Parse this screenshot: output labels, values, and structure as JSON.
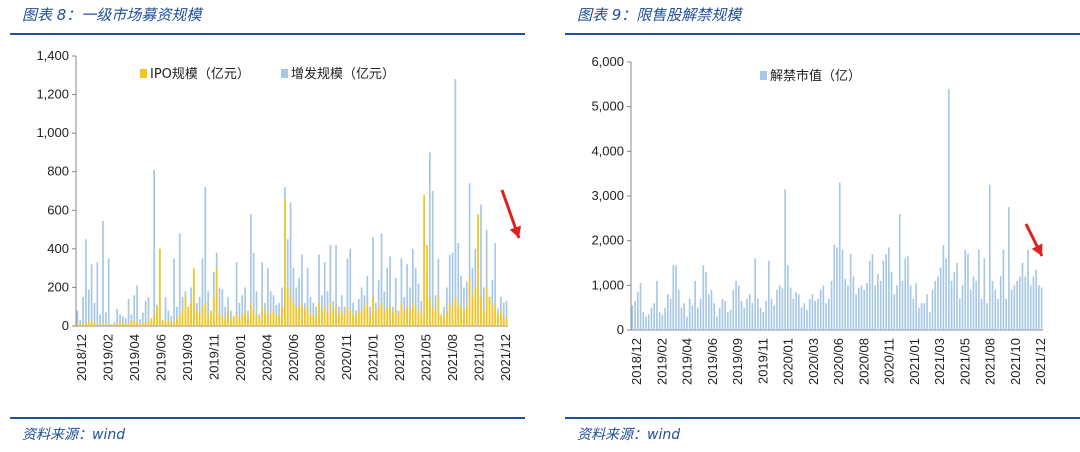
{
  "left": {
    "title": "图表 8：一级市场募资规模",
    "source": "资料来源：wind",
    "chart_data": {
      "type": "bar",
      "stacked": false,
      "ylim": [
        0,
        1400
      ],
      "yticks": [
        "0",
        "200",
        "400",
        "600",
        "800",
        "1,000",
        "1,200",
        "1,400"
      ],
      "xticks": [
        "2018/12",
        "2019/02",
        "2019/04",
        "2019/06",
        "2019/09",
        "2019/11",
        "2020/01",
        "2020/04",
        "2020/06",
        "2020/08",
        "2020/11",
        "2021/01",
        "2021/03",
        "2021/05",
        "2021/08",
        "2021/10",
        "2021/12"
      ],
      "legend": [
        {
          "label": "IPO规模（亿元）",
          "color": "#f5c518"
        },
        {
          "label": "增发规模（亿元）",
          "color": "#a7c7e7"
        }
      ],
      "series": [
        {
          "name": "增发规模（亿元）",
          "color": "#a7c7e7",
          "values": [
            80,
            30,
            150,
            450,
            190,
            320,
            120,
            330,
            60,
            545,
            70,
            350,
            10,
            20,
            90,
            60,
            50,
            40,
            140,
            60,
            160,
            210,
            35,
            70,
            130,
            150,
            30,
            810,
            110,
            400,
            30,
            150,
            80,
            50,
            350,
            100,
            480,
            150,
            180,
            80,
            200,
            120,
            120,
            150,
            350,
            720,
            180,
            60,
            280,
            380,
            200,
            190,
            100,
            150,
            80,
            50,
            330,
            120,
            160,
            200,
            80,
            580,
            380,
            180,
            60,
            330,
            120,
            300,
            180,
            160,
            110,
            120,
            200,
            720,
            450,
            640,
            300,
            200,
            250,
            370,
            120,
            300,
            150,
            120,
            100,
            370,
            160,
            330,
            180,
            420,
            130,
            420,
            100,
            160,
            100,
            350,
            400,
            120,
            80,
            140,
            200,
            160,
            260,
            100,
            460,
            120,
            240,
            480,
            180,
            300,
            360,
            100,
            250,
            80,
            350,
            150,
            320,
            200,
            400,
            300,
            220,
            130,
            440,
            280,
            900,
            700,
            160,
            350,
            50,
            100,
            200,
            370,
            380,
            1280,
            430,
            260,
            200,
            230,
            740,
            300,
            400,
            550,
            630,
            200,
            500,
            150,
            240,
            430,
            90,
            150,
            120,
            130
          ]
        },
        {
          "name": "IPO规模（亿元）",
          "color": "#f5c518",
          "values": [
            10,
            5,
            12,
            15,
            20,
            30,
            15,
            10,
            5,
            10,
            8,
            10,
            5,
            6,
            12,
            15,
            20,
            10,
            12,
            30,
            25,
            20,
            15,
            12,
            20,
            18,
            40,
            60,
            100,
            400,
            30,
            25,
            30,
            20,
            25,
            40,
            60,
            80,
            150,
            100,
            120,
            300,
            80,
            60,
            100,
            120,
            60,
            80,
            150,
            300,
            60,
            50,
            40,
            80,
            30,
            50,
            60,
            40,
            60,
            80,
            50,
            120,
            80,
            60,
            40,
            100,
            60,
            80,
            60,
            80,
            60,
            50,
            100,
            660,
            200,
            150,
            120,
            100,
            100,
            120,
            80,
            100,
            60,
            60,
            50,
            120,
            80,
            100,
            60,
            120,
            80,
            100,
            60,
            80,
            60,
            100,
            80,
            60,
            60,
            80,
            70,
            100,
            120,
            60,
            150,
            80,
            100,
            120,
            80,
            100,
            100,
            70,
            90,
            60,
            120,
            80,
            100,
            80,
            120,
            100,
            80,
            60,
            680,
            420,
            140,
            100,
            80,
            150,
            60,
            50,
            80,
            120,
            100,
            150,
            120,
            100,
            80,
            100,
            250,
            150,
            200,
            580,
            150,
            80,
            200,
            150,
            120,
            100,
            60,
            80,
            50,
            40
          ]
        }
      ]
    }
  },
  "right": {
    "title": "图表 9：限售股解禁规模",
    "source": "资料来源：wind",
    "chart_data": {
      "type": "bar",
      "ylim": [
        0,
        6000
      ],
      "yticks": [
        "0",
        "1,000",
        "2,000",
        "3,000",
        "4,000",
        "5,000",
        "6,000"
      ],
      "xticks": [
        "2018/12",
        "2019/02",
        "2019/04",
        "2019/06",
        "2019/09",
        "2019/11",
        "2020/01",
        "2020/03",
        "2020/06",
        "2020/08",
        "2020/11",
        "2021/01",
        "2021/03",
        "2021/05",
        "2021/08",
        "2021/10",
        "2021/12"
      ],
      "legend": [
        {
          "label": "解禁市值（亿）",
          "color": "#a7c7e7"
        }
      ],
      "series": [
        {
          "name": "解禁市值（亿）",
          "color": "#a7c7e7",
          "values": [
            550,
            650,
            850,
            1050,
            400,
            300,
            350,
            500,
            600,
            1100,
            400,
            350,
            500,
            800,
            700,
            1450,
            1450,
            900,
            500,
            600,
            300,
            700,
            550,
            1100,
            500,
            700,
            1450,
            1300,
            800,
            900,
            600,
            300,
            500,
            700,
            650,
            400,
            450,
            900,
            1100,
            1000,
            650,
            500,
            700,
            800,
            600,
            1600,
            700,
            500,
            400,
            650,
            1550,
            700,
            550,
            900,
            1000,
            950,
            3150,
            1450,
            950,
            700,
            850,
            800,
            500,
            600,
            450,
            700,
            800,
            650,
            700,
            900,
            1000,
            600,
            700,
            1100,
            1900,
            1850,
            3300,
            1800,
            1150,
            1000,
            1700,
            1200,
            800,
            950,
            1000,
            900,
            1050,
            1550,
            1700,
            1000,
            1250,
            1100,
            1550,
            1700,
            1850,
            1300,
            800,
            1000,
            2600,
            1100,
            1600,
            1650,
            1000,
            700,
            1050,
            500,
            600,
            600,
            800,
            400,
            900,
            1100,
            1200,
            1400,
            1900,
            1600,
            5400,
            1100,
            1300,
            1500,
            700,
            1000,
            1800,
            1700,
            900,
            1200,
            1100,
            1800,
            700,
            1600,
            600,
            3250,
            1100,
            900,
            700,
            1200,
            1800,
            700,
            2750,
            900,
            1000,
            1100,
            1200,
            1500,
            1200,
            1800,
            1000,
            1200,
            1350,
            1000,
            950
          ]
        }
      ]
    }
  }
}
